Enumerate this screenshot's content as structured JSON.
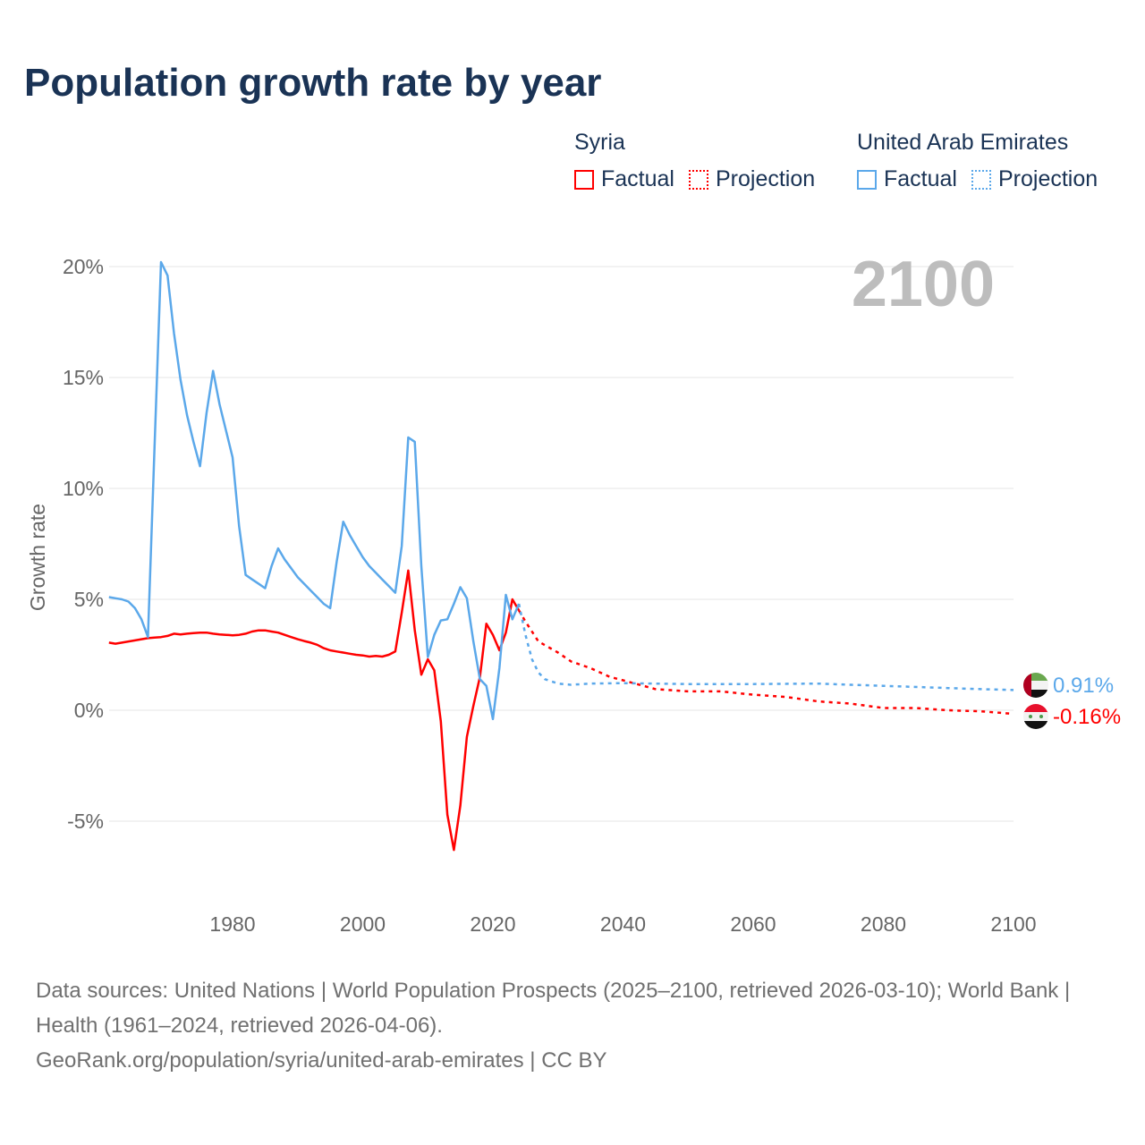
{
  "title": "Population growth rate by year",
  "legend": {
    "groups": [
      {
        "name": "Syria",
        "color": "#ff0000",
        "factual": "Factual",
        "projection": "Projection"
      },
      {
        "name": "United Arab Emirates",
        "color": "#5ba8ea",
        "factual": "Factual",
        "projection": "Projection"
      }
    ]
  },
  "year_label": "2100",
  "chart_data": {
    "type": "line",
    "title": "Population growth rate by year",
    "xlabel": "",
    "ylabel": "Growth rate",
    "xlim": [
      1961,
      2100
    ],
    "ylim": [
      -7.5,
      21
    ],
    "x_ticks": [
      1980,
      2000,
      2020,
      2040,
      2060,
      2080,
      2100
    ],
    "x_tick_labels": [
      "1980",
      "2000",
      "2020",
      "2040",
      "2060",
      "2080",
      "2100"
    ],
    "y_ticks": [
      -5,
      0,
      5,
      10,
      15,
      20
    ],
    "y_tick_labels": [
      "-5%",
      "0%",
      "5%",
      "10%",
      "15%",
      "20%"
    ],
    "grid": true,
    "legend_position": "top-right",
    "series": [
      {
        "name": "Syria Factual",
        "color": "#ff0000",
        "dashed": false,
        "start_year": 1961,
        "values": [
          3.05,
          3.0,
          3.05,
          3.1,
          3.15,
          3.2,
          3.25,
          3.28,
          3.3,
          3.35,
          3.45,
          3.42,
          3.45,
          3.48,
          3.5,
          3.5,
          3.45,
          3.42,
          3.4,
          3.38,
          3.4,
          3.45,
          3.55,
          3.6,
          3.6,
          3.55,
          3.5,
          3.4,
          3.3,
          3.2,
          3.12,
          3.05,
          2.95,
          2.8,
          2.7,
          2.65,
          2.6,
          2.55,
          2.5,
          2.47,
          2.42,
          2.45,
          2.42,
          2.5,
          2.65,
          4.4,
          6.3,
          3.6,
          1.6,
          2.3,
          1.8,
          -0.5,
          -4.7,
          -6.3,
          -4.3,
          -1.2,
          0.2,
          1.5,
          3.9,
          3.4,
          2.7,
          3.5,
          5.0,
          4.5
        ]
      },
      {
        "name": "Syria Projection",
        "color": "#ff0000",
        "dashed": true,
        "points": [
          [
            2024,
            4.5
          ],
          [
            2025,
            4.0
          ],
          [
            2027,
            3.1
          ],
          [
            2030,
            2.6
          ],
          [
            2032,
            2.2
          ],
          [
            2035,
            1.9
          ],
          [
            2038,
            1.5
          ],
          [
            2040,
            1.35
          ],
          [
            2045,
            0.95
          ],
          [
            2050,
            0.85
          ],
          [
            2055,
            0.85
          ],
          [
            2060,
            0.7
          ],
          [
            2065,
            0.6
          ],
          [
            2070,
            0.4
          ],
          [
            2075,
            0.3
          ],
          [
            2080,
            0.1
          ],
          [
            2085,
            0.1
          ],
          [
            2090,
            0.0
          ],
          [
            2095,
            -0.05
          ],
          [
            2100,
            -0.16
          ]
        ]
      },
      {
        "name": "United Arab Emirates Factual",
        "color": "#5ba8ea",
        "dashed": false,
        "start_year": 1961,
        "values": [
          5.1,
          5.05,
          5.0,
          4.9,
          4.6,
          4.1,
          3.3,
          11.8,
          20.2,
          19.6,
          17.0,
          14.9,
          13.3,
          12.1,
          11.0,
          13.4,
          15.3,
          13.8,
          12.6,
          11.4,
          8.3,
          6.1,
          5.9,
          5.7,
          5.5,
          6.5,
          7.3,
          6.8,
          6.4,
          6.0,
          5.7,
          5.4,
          5.1,
          4.8,
          4.6,
          6.7,
          8.5,
          7.9,
          7.4,
          6.9,
          6.5,
          6.2,
          5.9,
          5.6,
          5.3,
          7.4,
          12.3,
          12.1,
          6.5,
          2.4,
          3.4,
          4.05,
          4.1,
          4.8,
          5.55,
          5.05,
          3.1,
          1.4,
          1.1,
          -0.4,
          1.9,
          5.2,
          4.1,
          4.8
        ]
      },
      {
        "name": "United Arab Emirates Projection",
        "color": "#5ba8ea",
        "dashed": true,
        "points": [
          [
            2024,
            4.8
          ],
          [
            2025,
            3.4
          ],
          [
            2026,
            2.3
          ],
          [
            2027,
            1.7
          ],
          [
            2028,
            1.4
          ],
          [
            2030,
            1.2
          ],
          [
            2032,
            1.15
          ],
          [
            2035,
            1.2
          ],
          [
            2040,
            1.22
          ],
          [
            2050,
            1.18
          ],
          [
            2060,
            1.18
          ],
          [
            2070,
            1.2
          ],
          [
            2075,
            1.15
          ],
          [
            2080,
            1.1
          ],
          [
            2090,
            1.0
          ],
          [
            2095,
            0.95
          ],
          [
            2100,
            0.91
          ]
        ]
      }
    ],
    "end_labels": [
      {
        "series": "United Arab Emirates",
        "text": "0.91%",
        "color": "#5ba8ea"
      },
      {
        "series": "Syria",
        "text": "-0.16%",
        "color": "#ff0000"
      }
    ]
  },
  "footer": {
    "sources": "Data sources: United Nations | World Population Prospects (2025–2100, retrieved 2026-03-10); World Bank | Health (1961–2024, retrieved 2026-04-06).",
    "link": "GeoRank.org/population/syria/united-arab-emirates | CC BY"
  }
}
